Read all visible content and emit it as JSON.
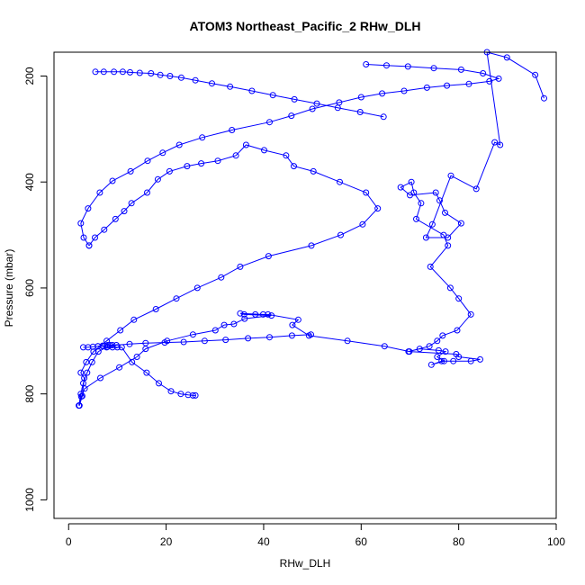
{
  "chart_data": {
    "type": "line",
    "title": "ATOM3 Northeast_Pacific_2 RHw_DLH",
    "xlabel": "RHw_DLH",
    "ylabel": "Pressure (mbar)",
    "xlim": [
      -3,
      100
    ],
    "ylim": [
      1035,
      155
    ],
    "y_reversed": true,
    "grid": false,
    "legend": "none",
    "xticks": [
      0,
      20,
      40,
      60,
      80,
      100
    ],
    "yticks": [
      200,
      400,
      600,
      800,
      1000
    ],
    "colors": {
      "series": "#0000ff",
      "frame": "#000000"
    },
    "series": [
      {
        "x": [
          97.5,
          95.7,
          89.9,
          85.8,
          88.5,
          87.4,
          83.6,
          78.4,
          74.6,
          73.3,
          77.8,
          80.5,
          77.2,
          76.1,
          75.3,
          70.0,
          68.1,
          70.3,
          70.8,
          72.3,
          71.3,
          76.9,
          77.8,
          74.2,
          78.3,
          80.0,
          82.5,
          79.7,
          76.7,
          75.6,
          74.0,
          69.7,
          72.0,
          75.9,
          77.3,
          75.6,
          77.0,
          74.4,
          76.5,
          78.9,
          82.5,
          84.4,
          80.0,
          79.5,
          69.9,
          64.8,
          57.2,
          49.3,
          45.9,
          47.1,
          40.9,
          38.3,
          39.9,
          35.2,
          36.0,
          41.6,
          36.1,
          33.9,
          31.9,
          30.1,
          25.5,
          20.2,
          15.8,
          14.0,
          10.4,
          6.5,
          3.3,
          2.6,
          2.2
        ],
        "y": [
          242,
          198,
          165,
          155,
          330,
          325,
          413,
          388,
          480,
          505,
          505,
          478,
          458,
          435,
          420,
          425,
          410,
          400,
          420,
          440,
          470,
          500,
          520,
          560,
          600,
          620,
          650,
          680,
          690,
          700,
          710,
          720,
          715,
          718,
          720,
          730,
          738,
          745,
          738,
          738,
          738,
          735,
          730,
          725,
          720,
          710,
          700,
          690,
          670,
          660,
          650,
          650,
          650,
          648,
          650,
          652,
          658,
          668,
          670,
          680,
          688,
          700,
          715,
          730,
          750,
          770,
          790,
          805,
          822
        ]
      },
      {
        "x": [
          2.2,
          2.8,
          3.2,
          2.5,
          3.6,
          5.1,
          7.8,
          10.6,
          13.4,
          17.9,
          22.1,
          26.4,
          31.3,
          35.2,
          41.0,
          49.8,
          55.8,
          60.3,
          63.4,
          61.0,
          55.6,
          50.2,
          46.2,
          44.6,
          40.1,
          36.4,
          34.3,
          30.6,
          27.2,
          24.3,
          20.7,
          18.3,
          16.1,
          12.9,
          11.4,
          9.6,
          7.3,
          5.4,
          4.2
        ],
        "y": [
          822,
          804,
          770,
          760,
          740,
          720,
          700,
          680,
          660,
          640,
          620,
          600,
          580,
          560,
          540,
          520,
          500,
          480,
          450,
          420,
          400,
          380,
          370,
          350,
          340,
          330,
          350,
          360,
          365,
          370,
          380,
          395,
          420,
          440,
          455,
          470,
          490,
          505,
          520
        ]
      },
      {
        "x": [
          4.2,
          3.1,
          2.5,
          4.0,
          6.4,
          9.0,
          12.7,
          16.2,
          19.3,
          22.7,
          27.4,
          33.5,
          41.2,
          45.7,
          50.0,
          55.5,
          60.0,
          64.3,
          68.8,
          73.5,
          77.6,
          82.1,
          86.3,
          88.2,
          85.0,
          80.5,
          74.9,
          69.6,
          65.2,
          61.0
        ],
        "y": [
          520,
          505,
          478,
          450,
          420,
          398,
          380,
          360,
          345,
          330,
          316,
          302,
          287,
          275,
          262,
          250,
          240,
          233,
          228,
          222,
          218,
          215,
          210,
          205,
          195,
          188,
          185,
          182,
          180,
          178
        ]
      },
      {
        "x": [
          5.5,
          7.2,
          9.3,
          11.1,
          12.6,
          14.6,
          16.9,
          18.8,
          20.8,
          23.1,
          26.0,
          29.4,
          33.1,
          37.6,
          41.9,
          46.3,
          50.9,
          55.2,
          59.8,
          64.6
        ],
        "y": [
          192,
          192,
          192,
          192,
          193,
          194,
          195,
          198,
          200,
          203,
          208,
          214,
          220,
          228,
          236,
          244,
          252,
          260,
          268,
          277
        ]
      },
      {
        "x": [
          2.1,
          2.5,
          3.0,
          3.8,
          4.8,
          6.1,
          7.8,
          9.8,
          12.5,
          15.8,
          19.7,
          23.6,
          27.9,
          32.2,
          36.8,
          41.2,
          45.8,
          49.7
        ],
        "y": [
          822,
          800,
          780,
          760,
          740,
          720,
          712,
          708,
          706,
          704,
          703,
          702,
          700,
          698,
          695,
          693,
          690,
          688
        ]
      },
      {
        "x": [
          6.0,
          7.0,
          8.0,
          9.0,
          10.0,
          10.9,
          13.0,
          16.0,
          18.5,
          21.0,
          23.0,
          24.5,
          25.5,
          26.0
        ],
        "y": [
          710,
          710,
          711,
          712,
          712,
          712,
          740,
          760,
          780,
          795,
          800,
          802,
          803,
          803
        ]
      },
      {
        "x": [
          3.0,
          4.0,
          5.0,
          6.0,
          7.0,
          8.0,
          8.5,
          9.0
        ],
        "y": [
          712,
          712,
          711,
          710,
          709,
          708,
          708,
          708
        ]
      }
    ]
  }
}
